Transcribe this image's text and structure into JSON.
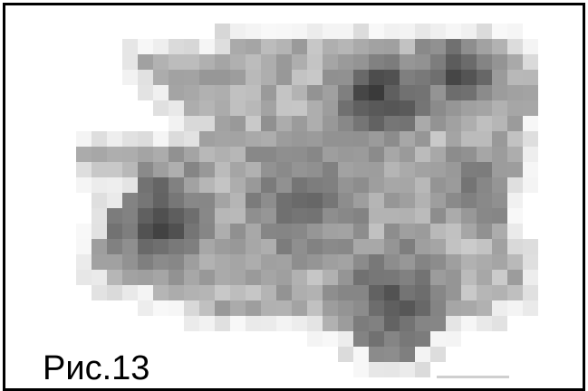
{
  "figure": {
    "caption": "Рис.13",
    "frame_color": "#000000",
    "background_color": "#ffffff"
  },
  "image": {
    "style": "pixelated grayscale mosaic",
    "colors": {
      "lightest": "#f2f2f2",
      "darkest": "#2a2a2a"
    }
  }
}
